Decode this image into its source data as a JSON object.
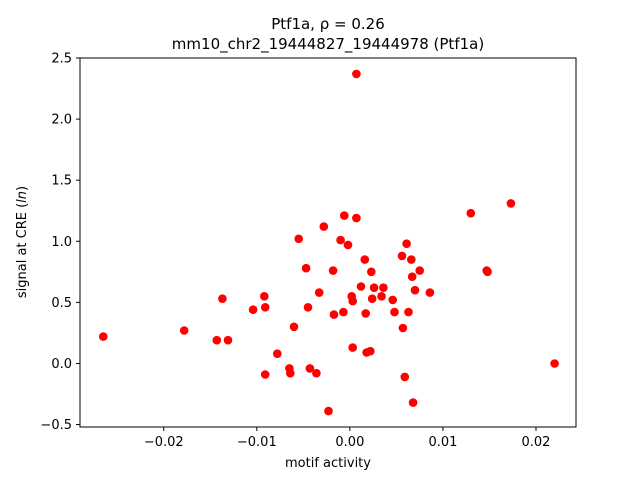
{
  "chart_data": {
    "type": "scatter",
    "title_line1": "Ptf1a, ρ = 0.26",
    "title_line2": "mm10_chr2_19444827_19444978 (Ptf1a)",
    "xlabel": "motif activity",
    "ylabel": "signal at CRE (ln)",
    "xlim": [
      -0.029,
      0.0243
    ],
    "ylim": [
      -0.52,
      2.5
    ],
    "xticks": [
      -0.02,
      -0.01,
      0.0,
      0.01,
      0.02
    ],
    "xtick_labels": [
      "−0.02",
      "−0.01",
      "0.00",
      "0.01",
      "0.02"
    ],
    "yticks": [
      -0.5,
      0.0,
      0.5,
      1.0,
      1.5,
      2.0,
      2.5
    ],
    "ytick_labels": [
      "−0.5",
      "0.0",
      "0.5",
      "1.0",
      "1.5",
      "2.0",
      "2.5"
    ],
    "marker_color": "#ff0000",
    "grid": false,
    "points": [
      {
        "x": -0.0265,
        "y": 0.22
      },
      {
        "x": -0.0178,
        "y": 0.27
      },
      {
        "x": -0.0143,
        "y": 0.19
      },
      {
        "x": -0.0137,
        "y": 0.53
      },
      {
        "x": -0.0131,
        "y": 0.19
      },
      {
        "x": -0.0104,
        "y": 0.44
      },
      {
        "x": -0.0092,
        "y": 0.55
      },
      {
        "x": -0.0091,
        "y": 0.46
      },
      {
        "x": -0.0091,
        "y": -0.09
      },
      {
        "x": -0.0078,
        "y": 0.08
      },
      {
        "x": -0.0065,
        "y": -0.04
      },
      {
        "x": -0.0064,
        "y": -0.08
      },
      {
        "x": -0.006,
        "y": 0.3
      },
      {
        "x": -0.0055,
        "y": 1.02
      },
      {
        "x": -0.0047,
        "y": 0.78
      },
      {
        "x": -0.0045,
        "y": 0.46
      },
      {
        "x": -0.0043,
        "y": -0.04
      },
      {
        "x": -0.0036,
        "y": -0.08
      },
      {
        "x": -0.0033,
        "y": 0.58
      },
      {
        "x": -0.0028,
        "y": 1.12
      },
      {
        "x": -0.0023,
        "y": -0.39
      },
      {
        "x": -0.0018,
        "y": 0.76
      },
      {
        "x": -0.0017,
        "y": 0.4
      },
      {
        "x": -0.001,
        "y": 1.01
      },
      {
        "x": -0.0007,
        "y": 0.42
      },
      {
        "x": -0.0006,
        "y": 1.21
      },
      {
        "x": -0.0002,
        "y": 0.97
      },
      {
        "x": 0.0002,
        "y": 0.55
      },
      {
        "x": 0.0003,
        "y": 0.51
      },
      {
        "x": 0.0003,
        "y": 0.13
      },
      {
        "x": 0.0007,
        "y": 1.19
      },
      {
        "x": 0.0007,
        "y": 2.37
      },
      {
        "x": 0.0012,
        "y": 0.63
      },
      {
        "x": 0.0016,
        "y": 0.85
      },
      {
        "x": 0.0017,
        "y": 0.41
      },
      {
        "x": 0.0018,
        "y": 0.09
      },
      {
        "x": 0.0022,
        "y": 0.1
      },
      {
        "x": 0.0023,
        "y": 0.75
      },
      {
        "x": 0.0024,
        "y": 0.53
      },
      {
        "x": 0.0026,
        "y": 0.62
      },
      {
        "x": 0.0034,
        "y": 0.55
      },
      {
        "x": 0.0036,
        "y": 0.62
      },
      {
        "x": 0.0046,
        "y": 0.52
      },
      {
        "x": 0.0048,
        "y": 0.42
      },
      {
        "x": 0.0056,
        "y": 0.88
      },
      {
        "x": 0.0057,
        "y": 0.29
      },
      {
        "x": 0.0059,
        "y": -0.11
      },
      {
        "x": 0.0061,
        "y": 0.98
      },
      {
        "x": 0.0063,
        "y": 0.42
      },
      {
        "x": 0.0066,
        "y": 0.85
      },
      {
        "x": 0.0067,
        "y": 0.71
      },
      {
        "x": 0.0068,
        "y": -0.32
      },
      {
        "x": 0.007,
        "y": 0.6
      },
      {
        "x": 0.0075,
        "y": 0.76
      },
      {
        "x": 0.0086,
        "y": 0.58
      },
      {
        "x": 0.013,
        "y": 1.23
      },
      {
        "x": 0.0147,
        "y": 0.76
      },
      {
        "x": 0.0148,
        "y": 0.75
      },
      {
        "x": 0.0173,
        "y": 1.31
      },
      {
        "x": 0.022,
        "y": 0.0
      }
    ]
  }
}
